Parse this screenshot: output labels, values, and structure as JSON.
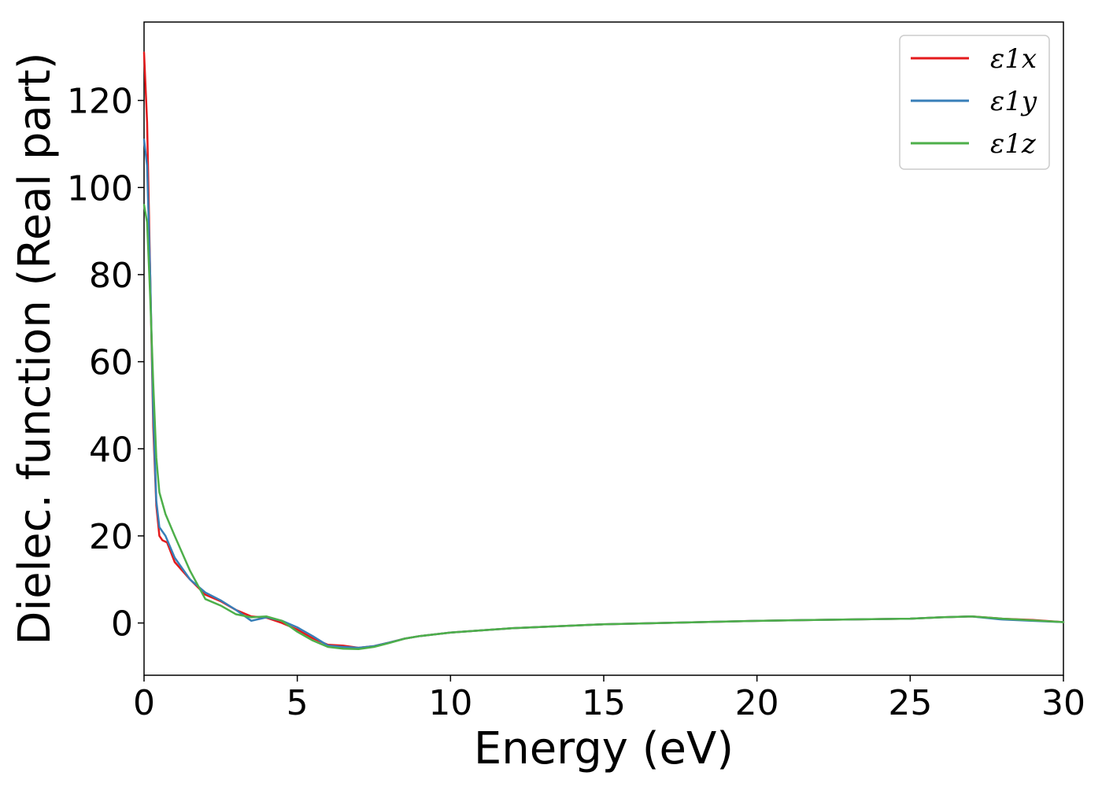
{
  "chart_data": {
    "type": "line",
    "title": "",
    "xlabel": "Energy (eV)",
    "ylabel": "Dielec. function (Real part)",
    "xlim": [
      0,
      30
    ],
    "ylim": [
      -12,
      138
    ],
    "xticks": [
      0,
      5,
      10,
      15,
      20,
      25,
      30
    ],
    "xtick_labels": [
      "0",
      "5",
      "10",
      "15",
      "20",
      "25",
      "30"
    ],
    "yticks": [
      0,
      20,
      40,
      60,
      80,
      100,
      120
    ],
    "ytick_labels": [
      "0",
      "20",
      "40",
      "60",
      "80",
      "100",
      "120"
    ],
    "grid": false,
    "legend_position": "top-right",
    "series": [
      {
        "name": "ε1x",
        "color": "#e41a1c",
        "points": [
          [
            0,
            131
          ],
          [
            0.1,
            115
          ],
          [
            0.2,
            80
          ],
          [
            0.3,
            45
          ],
          [
            0.4,
            27
          ],
          [
            0.5,
            20
          ],
          [
            0.6,
            19
          ],
          [
            0.75,
            18.5
          ],
          [
            1,
            14
          ],
          [
            1.5,
            10
          ],
          [
            2,
            6.5
          ],
          [
            2.5,
            5
          ],
          [
            3,
            3
          ],
          [
            3.5,
            1.5
          ],
          [
            4,
            1.2
          ],
          [
            4.5,
            0
          ],
          [
            5,
            -1.5
          ],
          [
            5.5,
            -3.5
          ],
          [
            6,
            -5
          ],
          [
            6.5,
            -5.2
          ],
          [
            7,
            -5.7
          ],
          [
            7.5,
            -5.3
          ],
          [
            8,
            -4.5
          ],
          [
            8.5,
            -3.6
          ],
          [
            9,
            -3
          ],
          [
            10,
            -2.2
          ],
          [
            12,
            -1.2
          ],
          [
            15,
            -0.3
          ],
          [
            20,
            0.5
          ],
          [
            25,
            1
          ],
          [
            26,
            1.3
          ],
          [
            27,
            1.5
          ],
          [
            28,
            1
          ],
          [
            29,
            0.7
          ],
          [
            30,
            0.2
          ]
        ]
      },
      {
        "name": "ε1y",
        "color": "#377eb8",
        "points": [
          [
            0,
            111
          ],
          [
            0.1,
            105
          ],
          [
            0.2,
            80
          ],
          [
            0.3,
            48
          ],
          [
            0.4,
            28
          ],
          [
            0.5,
            22
          ],
          [
            0.7,
            20
          ],
          [
            1,
            15
          ],
          [
            1.5,
            10
          ],
          [
            2,
            7
          ],
          [
            2.5,
            5.2
          ],
          [
            3,
            3
          ],
          [
            3.5,
            0.5
          ],
          [
            4,
            1.3
          ],
          [
            4.5,
            0.5
          ],
          [
            5,
            -1
          ],
          [
            5.5,
            -3
          ],
          [
            6,
            -5.2
          ],
          [
            6.5,
            -5.5
          ],
          [
            7,
            -5.7
          ],
          [
            7.5,
            -5.3
          ],
          [
            8,
            -4.5
          ],
          [
            8.5,
            -3.6
          ],
          [
            9,
            -3
          ],
          [
            10,
            -2.2
          ],
          [
            12,
            -1.2
          ],
          [
            15,
            -0.3
          ],
          [
            20,
            0.5
          ],
          [
            25,
            1
          ],
          [
            26,
            1.3
          ],
          [
            27,
            1.5
          ],
          [
            28,
            0.8
          ],
          [
            29,
            0.5
          ],
          [
            30,
            0.2
          ]
        ]
      },
      {
        "name": "ε1z",
        "color": "#4daf4a",
        "points": [
          [
            0,
            96
          ],
          [
            0.1,
            92
          ],
          [
            0.2,
            75
          ],
          [
            0.3,
            55
          ],
          [
            0.4,
            38
          ],
          [
            0.5,
            30
          ],
          [
            0.7,
            25
          ],
          [
            1,
            20
          ],
          [
            1.5,
            12
          ],
          [
            2,
            5.5
          ],
          [
            2.5,
            4
          ],
          [
            3,
            2
          ],
          [
            3.5,
            1.3
          ],
          [
            4,
            1.5
          ],
          [
            4.5,
            0.5
          ],
          [
            5,
            -2
          ],
          [
            5.5,
            -4
          ],
          [
            6,
            -5.5
          ],
          [
            6.5,
            -5.9
          ],
          [
            7,
            -6
          ],
          [
            7.5,
            -5.5
          ],
          [
            8,
            -4.6
          ],
          [
            8.5,
            -3.6
          ],
          [
            9,
            -3
          ],
          [
            10,
            -2.2
          ],
          [
            12,
            -1.2
          ],
          [
            15,
            -0.3
          ],
          [
            20,
            0.5
          ],
          [
            25,
            1
          ],
          [
            26,
            1.3
          ],
          [
            27,
            1.5
          ],
          [
            28,
            1
          ],
          [
            29,
            0.6
          ],
          [
            30,
            0.2
          ]
        ]
      }
    ]
  }
}
